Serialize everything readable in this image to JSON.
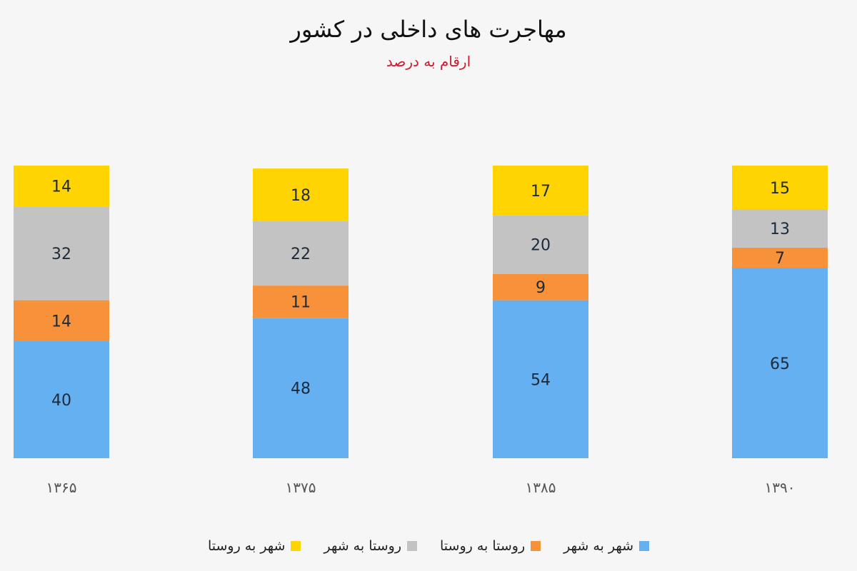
{
  "title": "مهاجرت های داخلی در کشور",
  "subtitle": "ارقام به درصد",
  "chart_data": {
    "type": "bar",
    "stacked": true,
    "categories": [
      "۱۳۶۵",
      "۱۳۷۵",
      "۱۳۸۵",
      "۱۳۹۰"
    ],
    "series": [
      {
        "name": "شهر به شهر",
        "color": "#64b0f1",
        "values": [
          40,
          48,
          54,
          65
        ]
      },
      {
        "name": "روستا به روستا",
        "color": "#f7913a",
        "values": [
          14,
          11,
          9,
          7
        ]
      },
      {
        "name": "روستا به شهر",
        "color": "#c3c3c3",
        "values": [
          32,
          22,
          20,
          13
        ]
      },
      {
        "name": "شهر به روستا",
        "color": "#ffd400",
        "values": [
          14,
          18,
          17,
          15
        ]
      }
    ],
    "legend_position": "bottom",
    "ylim": [
      0,
      100
    ],
    "grid": false,
    "data_labels": true
  }
}
